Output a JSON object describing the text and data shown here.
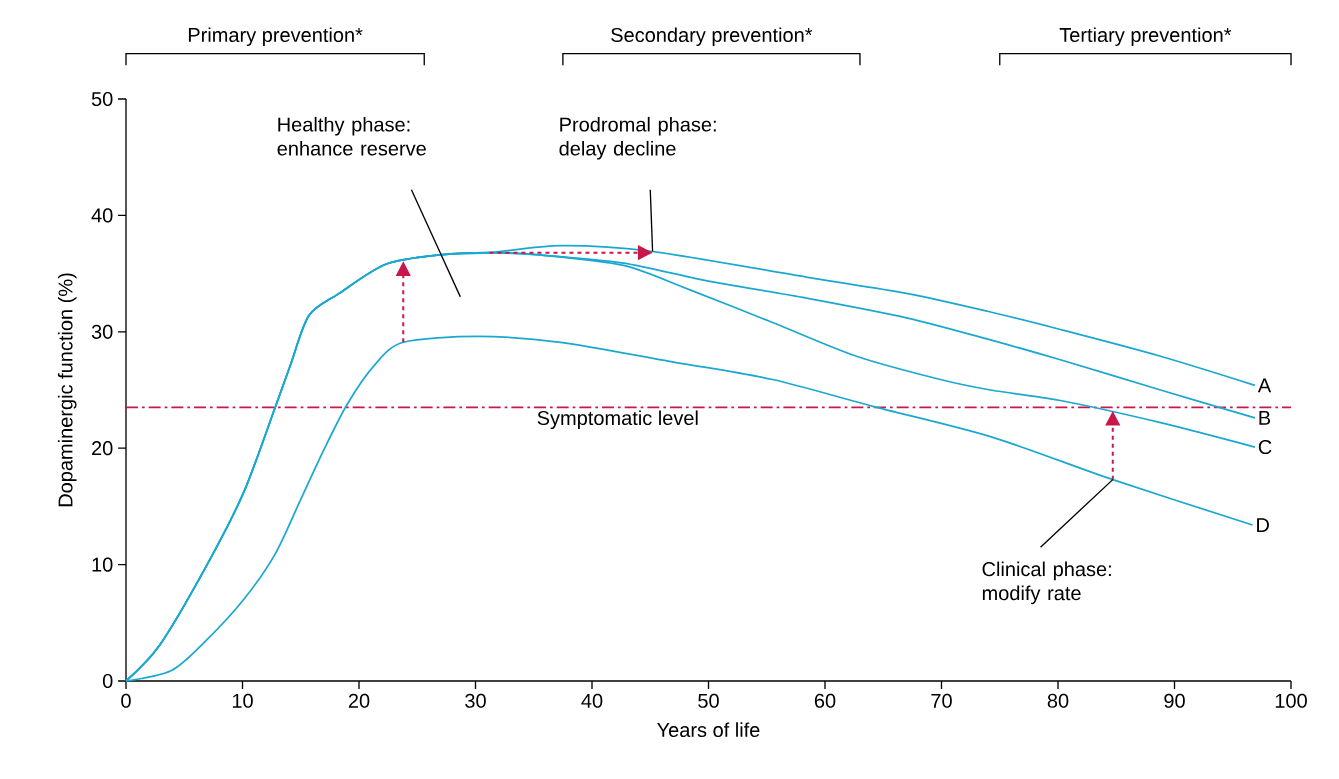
{
  "chart_data": {
    "type": "line",
    "xlabel": "Years of life",
    "ylabel": "Dopaminergic function (%)",
    "xlim": [
      0,
      100
    ],
    "ylim": [
      0,
      50
    ],
    "xticks": [
      0,
      10,
      20,
      30,
      40,
      50,
      60,
      70,
      80,
      90,
      100
    ],
    "yticks": [
      0,
      10,
      20,
      30,
      40,
      50
    ],
    "series": [
      {
        "name": "A",
        "color": "#1ba8d0",
        "x": [
          0,
          2.9,
          6.8,
          10.1,
          12.8,
          14.1,
          15.7,
          18.3,
          22.3,
          26.9,
          31.2,
          37.3,
          45.2,
          58.4,
          67,
          74.2,
          80.2,
          88.8,
          96.9
        ],
        "values": [
          0,
          3.1,
          9.7,
          16.2,
          23.5,
          27.1,
          31.4,
          33.3,
          35.8,
          36.6,
          36.8,
          37.4,
          36.9,
          34.7,
          33.3,
          31.7,
          30.2,
          27.9,
          25.4
        ]
      },
      {
        "name": "B",
        "color": "#1ba8d0",
        "x": [
          0,
          2.9,
          6.8,
          10.1,
          12.8,
          14.1,
          15.7,
          18.3,
          22.3,
          26.9,
          31.2,
          35.5,
          42.7,
          49.8,
          58.4,
          67,
          74.2,
          80.2,
          88.8,
          96.9
        ],
        "values": [
          0,
          3.1,
          9.7,
          16.2,
          23.5,
          27.1,
          31.4,
          33.3,
          35.8,
          36.6,
          36.8,
          36.6,
          35.9,
          34.4,
          32.9,
          31.2,
          29.3,
          27.6,
          25,
          22.6
        ]
      },
      {
        "name": "C",
        "color": "#1ba8d0",
        "x": [
          0,
          2.9,
          6.8,
          10.1,
          12.8,
          14.1,
          15.7,
          18.3,
          22.3,
          26.9,
          31.2,
          35.5,
          42.7,
          48.4,
          55.5,
          62.7,
          69.9,
          74.2,
          80.2,
          88.8,
          96.9
        ],
        "values": [
          0,
          3.1,
          9.7,
          16.2,
          23.5,
          27.1,
          31.4,
          33.3,
          35.8,
          36.6,
          36.8,
          36.6,
          35.7,
          33.6,
          30.8,
          27.9,
          25.9,
          25,
          24.1,
          22.2,
          20.1
        ]
      },
      {
        "name": "D",
        "color": "#1ba8d0",
        "x": [
          0,
          3.9,
          6.8,
          10.1,
          12.8,
          15,
          17,
          19,
          21.3,
          23.8,
          30.2,
          37.3,
          47,
          55.5,
          64.1,
          74.2,
          84.7,
          96.7
        ],
        "values": [
          0,
          0.9,
          3.4,
          7,
          10.9,
          15.6,
          19.9,
          23.8,
          27.1,
          29.1,
          29.6,
          29.1,
          27.4,
          25.9,
          23.6,
          21,
          17.3,
          13.4
        ]
      }
    ],
    "ref_lines": [
      {
        "axis": "y",
        "value": 23.5,
        "label": "Symptomatic level",
        "color": "#c8174a",
        "line_style": "dashed"
      }
    ],
    "annotations": [
      "Primary prevention*",
      "Secondary prevention*",
      "Tertiary prevention*",
      "Healthy phase: enhance reserve",
      "Prodromal phase: delay decline",
      {
        "text": "Clinical phase: modify rate",
        "x": 84.7,
        "y": 17.3
      }
    ]
  }
}
